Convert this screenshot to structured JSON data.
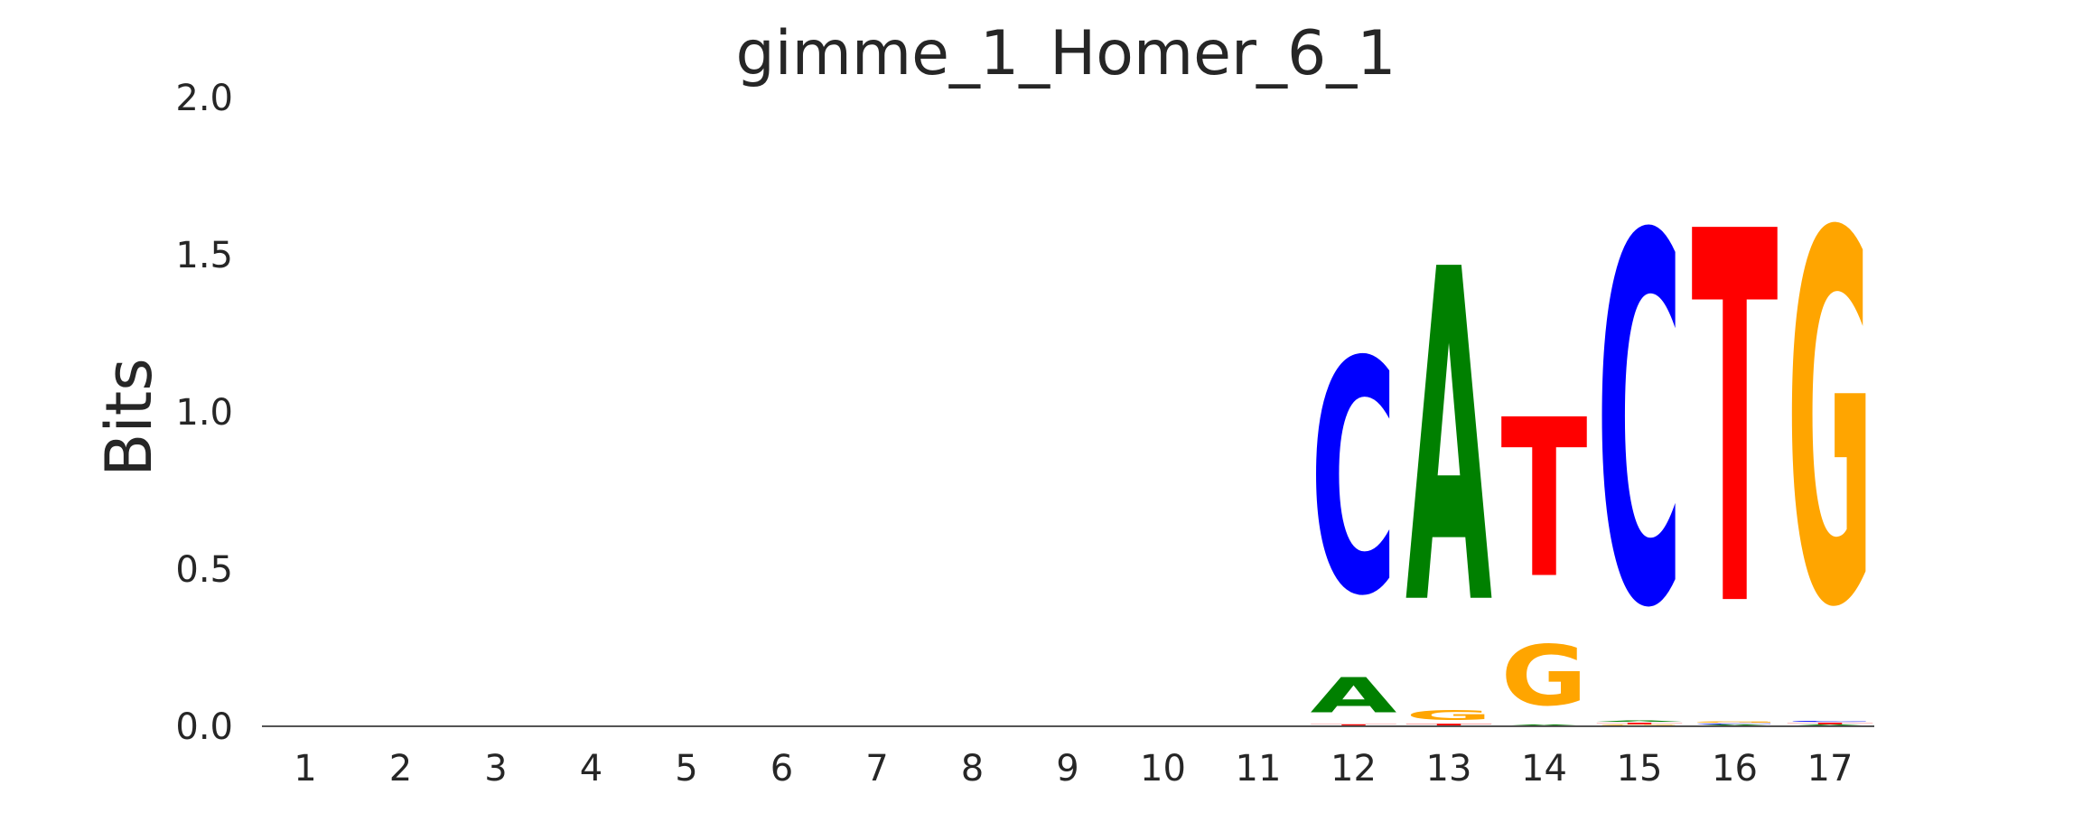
{
  "chart_data": {
    "type": "sequence-logo",
    "title": "gimme_1_Homer_6_1",
    "xlabel": "",
    "ylabel": "Bits",
    "ylim": [
      0,
      2.0
    ],
    "yticks": [
      "0.0",
      "0.5",
      "1.0",
      "1.5",
      "2.0"
    ],
    "categories": [
      "1",
      "2",
      "3",
      "4",
      "5",
      "6",
      "7",
      "8",
      "9",
      "10",
      "11",
      "12",
      "13",
      "14",
      "15",
      "16",
      "17"
    ],
    "grid": false,
    "colors": {
      "A": "#008000",
      "C": "#0000ff",
      "G": "#ffa500",
      "T": "#ff0000"
    },
    "positions": [
      {
        "pos": "1",
        "letters": []
      },
      {
        "pos": "2",
        "letters": []
      },
      {
        "pos": "3",
        "letters": []
      },
      {
        "pos": "4",
        "letters": []
      },
      {
        "pos": "5",
        "letters": []
      },
      {
        "pos": "6",
        "letters": []
      },
      {
        "pos": "7",
        "letters": []
      },
      {
        "pos": "8",
        "letters": []
      },
      {
        "pos": "9",
        "letters": []
      },
      {
        "pos": "10",
        "letters": []
      },
      {
        "pos": "11",
        "letters": []
      },
      {
        "pos": "12",
        "letters": [
          {
            "base": "T",
            "bits": 0.008
          },
          {
            "base": "A",
            "bits": 0.18
          },
          {
            "base": "C",
            "bits": 1.19
          }
        ]
      },
      {
        "pos": "13",
        "letters": [
          {
            "base": "T",
            "bits": 0.01
          },
          {
            "base": "G",
            "bits": 0.05
          },
          {
            "base": "A",
            "bits": 1.7
          }
        ]
      },
      {
        "pos": "14",
        "letters": [
          {
            "base": "A",
            "bits": 0.005
          },
          {
            "base": "G",
            "bits": 0.31
          },
          {
            "base": "T",
            "bits": 0.81
          }
        ]
      },
      {
        "pos": "15",
        "letters": [
          {
            "base": "G",
            "bits": 0.005
          },
          {
            "base": "T",
            "bits": 0.008
          },
          {
            "base": "A",
            "bits": 0.005
          },
          {
            "base": "C",
            "bits": 1.88
          }
        ]
      },
      {
        "pos": "16",
        "letters": [
          {
            "base": "A",
            "bits": 0.005
          },
          {
            "base": "C",
            "bits": 0.005
          },
          {
            "base": "G",
            "bits": 0.005
          },
          {
            "base": "T",
            "bits": 1.9
          }
        ]
      },
      {
        "pos": "17",
        "letters": [
          {
            "base": "A",
            "bits": 0.005
          },
          {
            "base": "T",
            "bits": 0.008
          },
          {
            "base": "C",
            "bits": 0.005
          },
          {
            "base": "G",
            "bits": 1.89
          }
        ]
      }
    ]
  }
}
